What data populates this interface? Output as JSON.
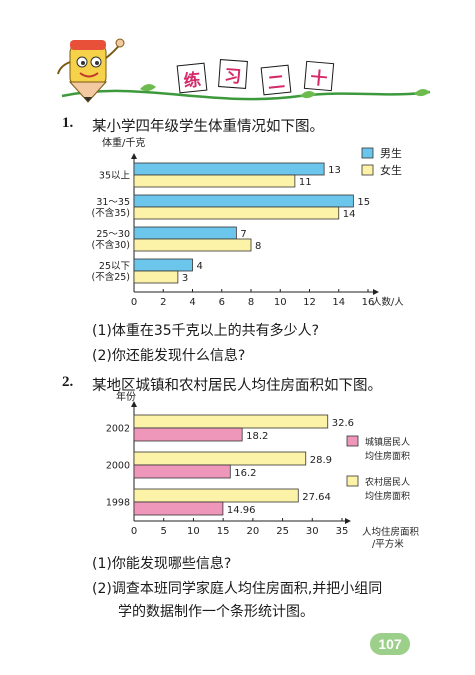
{
  "header": {
    "title_chars": [
      "练",
      "习",
      "二",
      "十"
    ]
  },
  "q1": {
    "number": "1.",
    "text": "某小学四年级学生体重情况如下图。",
    "sub1": "(1)体重在35千克以上的共有多少人?",
    "sub2": "(2)你还能发现什么信息?"
  },
  "q2": {
    "number": "2.",
    "text": "某地区城镇和农村居民人均住房面积如下图。",
    "sub1": "(1)你能发现哪些信息?",
    "sub2_line1": "(2)调查本班同学家庭人均住房面积,并把小组同",
    "sub2_line2": "学的数据制作一个条形统计图。"
  },
  "page_number": "107",
  "colors": {
    "blue": "#6cc6ec",
    "yellow": "#fdf3a8",
    "pink": "#ef97bb",
    "title": "#d42a6a",
    "page": "#9ccf8a"
  },
  "chart_data": [
    {
      "type": "bar",
      "orientation": "horizontal",
      "ylabel": "体重/千克",
      "xlabel": "人数/人",
      "categories": [
        [
          "35以上"
        ],
        [
          "31～35",
          "(不含35)"
        ],
        [
          "25～30",
          "(不含30)"
        ],
        [
          "25以下",
          "(不含25)"
        ]
      ],
      "series": [
        {
          "name": "男生",
          "color": "#6cc6ec",
          "values": [
            13,
            15,
            7,
            4
          ]
        },
        {
          "name": "女生",
          "color": "#fdf3a8",
          "values": [
            11,
            14,
            8,
            3
          ]
        }
      ],
      "value_labels": [
        [
          "13",
          "15",
          "7",
          "4"
        ],
        [
          "11",
          "14",
          "8",
          "3"
        ]
      ],
      "xlim": [
        0,
        16
      ],
      "xticks": [
        "0",
        "2",
        "4",
        "6",
        "8",
        "10",
        "12",
        "14",
        "16"
      ],
      "grid": false,
      "legend": "top-right"
    },
    {
      "type": "bar",
      "orientation": "horizontal",
      "ylabel": "年份",
      "xlabel": [
        "人均住房面积",
        "/平方米"
      ],
      "categories": [
        [
          "2002"
        ],
        [
          "2000"
        ],
        [
          "1998"
        ]
      ],
      "series": [
        {
          "name": [
            "农村居民人",
            "均住房面积"
          ],
          "color": "#fdf3a8",
          "values": [
            32.6,
            28.9,
            27.64
          ]
        },
        {
          "name": [
            "城镇居民人",
            "均住房面积"
          ],
          "color": "#ef97bb",
          "values": [
            18.2,
            16.2,
            14.96
          ]
        }
      ],
      "value_labels": [
        [
          "32.6",
          "28.9",
          "27.64"
        ],
        [
          "18.2",
          "16.2",
          "14.96"
        ]
      ],
      "xlim": [
        0,
        35
      ],
      "xticks": [
        "0",
        "5",
        "10",
        "15",
        "20",
        "25",
        "30",
        "35"
      ],
      "grid": false,
      "legend": "right"
    }
  ]
}
